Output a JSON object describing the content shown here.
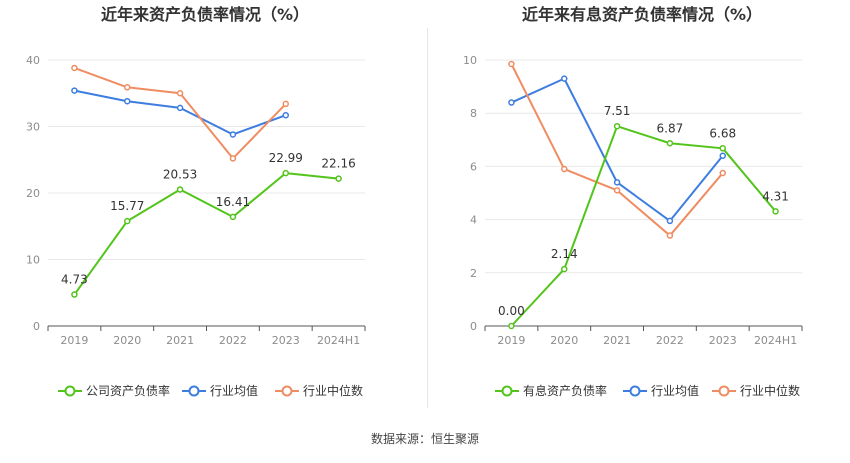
{
  "source": "数据来源：恒生聚源",
  "charts": [
    {
      "title": "近年来资产负债率情况（%）",
      "legend": [
        "公司资产负债率",
        "行业均值",
        "行业中位数"
      ],
      "colors": [
        "#52c41a",
        "#3d7de0",
        "#f08c62"
      ]
    },
    {
      "title": "近年来有息资产负债率情况（%）",
      "legend": [
        "有息资产负债率",
        "行业均值",
        "行业中位数"
      ],
      "colors": [
        "#52c41a",
        "#3d7de0",
        "#f08c62"
      ]
    }
  ],
  "chart_data": [
    {
      "type": "line",
      "title": "近年来资产负债率情况（%）",
      "categories": [
        "2019",
        "2020",
        "2021",
        "2022",
        "2023",
        "2024H1"
      ],
      "ylim": [
        0,
        40
      ],
      "yticks": [
        0,
        10,
        20,
        30,
        40
      ],
      "grid": true,
      "legend_position": "bottom",
      "series": [
        {
          "name": "公司资产负债率",
          "values": [
            4.73,
            15.77,
            20.53,
            16.41,
            22.99,
            22.16
          ],
          "labels": [
            "4.73",
            "15.77",
            "20.53",
            "16.41",
            "22.99",
            "22.16"
          ]
        },
        {
          "name": "行业均值",
          "values": [
            35.4,
            33.8,
            32.8,
            28.8,
            31.7,
            null
          ]
        },
        {
          "name": "行业中位数",
          "values": [
            38.8,
            35.9,
            35.0,
            25.2,
            33.4,
            null
          ]
        }
      ]
    },
    {
      "type": "line",
      "title": "近年来有息资产负债率情况（%）",
      "categories": [
        "2019",
        "2020",
        "2021",
        "2022",
        "2023",
        "2024H1"
      ],
      "ylim": [
        0,
        10
      ],
      "yticks": [
        0,
        2,
        4,
        6,
        8,
        10
      ],
      "grid": true,
      "legend_position": "bottom",
      "series": [
        {
          "name": "有息资产负债率",
          "values": [
            0.0,
            2.14,
            7.51,
            6.87,
            6.68,
            4.31
          ],
          "labels": [
            "0.00",
            "2.14",
            "7.51",
            "6.87",
            "6.68",
            "4.31"
          ]
        },
        {
          "name": "行业均值",
          "values": [
            8.4,
            9.3,
            5.4,
            3.95,
            6.4,
            null
          ]
        },
        {
          "name": "行业中位数",
          "values": [
            9.85,
            5.9,
            5.1,
            3.4,
            5.75,
            null
          ]
        }
      ]
    }
  ]
}
